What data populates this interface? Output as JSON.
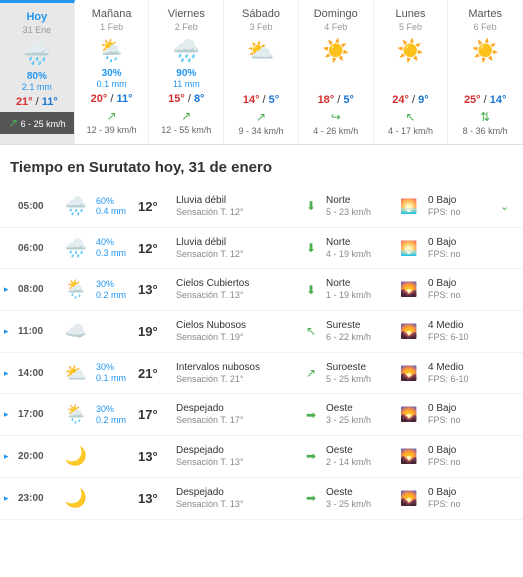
{
  "week": [
    {
      "label": "Hoy",
      "date": "31 Ene",
      "icon": "🌧️",
      "prob": "80%",
      "mm": "2.1 mm",
      "hi": "21°",
      "lo": "11°",
      "wind": "6 - 25 km/h",
      "winddir": "↗",
      "today": true
    },
    {
      "label": "Mañana",
      "date": "1 Feb",
      "icon": "🌦️",
      "prob": "30%",
      "mm": "0.1 mm",
      "hi": "20°",
      "lo": "11°",
      "wind": "12 - 39 km/h",
      "winddir": "↗"
    },
    {
      "label": "Viernes",
      "date": "2 Feb",
      "icon": "🌧️",
      "prob": "90%",
      "mm": "11 mm",
      "hi": "15°",
      "lo": "8°",
      "wind": "12 - 55 km/h",
      "winddir": "↗"
    },
    {
      "label": "Sábado",
      "date": "3 Feb",
      "icon": "⛅",
      "prob": "",
      "mm": "",
      "hi": "14°",
      "lo": "5°",
      "wind": "9 - 34 km/h",
      "winddir": "↗"
    },
    {
      "label": "Domingo",
      "date": "4 Feb",
      "icon": "☀️",
      "prob": "",
      "mm": "",
      "hi": "18°",
      "lo": "5°",
      "wind": "4 - 26 km/h",
      "winddir": "↪"
    },
    {
      "label": "Lunes",
      "date": "5 Feb",
      "icon": "☀️",
      "prob": "",
      "mm": "",
      "hi": "24°",
      "lo": "9°",
      "wind": "4 - 17 km/h",
      "winddir": "↖"
    },
    {
      "label": "Martes",
      "date": "6 Feb",
      "icon": "☀️",
      "prob": "",
      "mm": "",
      "hi": "25°",
      "lo": "14°",
      "wind": "8 - 36 km/h",
      "winddir": "⇅"
    }
  ],
  "hourly_title": "Tiempo en Surutato hoy, 31 de enero",
  "hours": [
    {
      "arrow": "",
      "time": "05:00",
      "icon": "🌧️",
      "prob": "60%",
      "mm": "0.4 mm",
      "temp": "12°",
      "cond": "Lluvia débil",
      "feel": "Sensación T. 12°",
      "wdir": "⬇",
      "wname": "Norte",
      "wspd": "5 - 23 km/h",
      "uvicon": "🌅",
      "uv": "0 Bajo",
      "fps": "FPS: no",
      "chev": "⌄"
    },
    {
      "arrow": "",
      "time": "06:00",
      "icon": "🌧️",
      "prob": "40%",
      "mm": "0.3 mm",
      "temp": "12°",
      "cond": "Lluvia débil",
      "feel": "Sensación T. 12°",
      "wdir": "⬇",
      "wname": "Norte",
      "wspd": "4 - 19 km/h",
      "uvicon": "🌅",
      "uv": "0 Bajo",
      "fps": "FPS: no",
      "chev": ""
    },
    {
      "arrow": "▸",
      "time": "08:00",
      "icon": "🌦️",
      "prob": "30%",
      "mm": "0.2 mm",
      "temp": "13°",
      "cond": "Cielos Cubiertos",
      "feel": "Sensación T. 13°",
      "wdir": "⬇",
      "wname": "Norte",
      "wspd": "1 - 19 km/h",
      "uvicon": "🌄",
      "uv": "0 Bajo",
      "fps": "FPS: no",
      "chev": ""
    },
    {
      "arrow": "▸",
      "time": "11:00",
      "icon": "☁️",
      "prob": "",
      "mm": "",
      "temp": "19°",
      "cond": "Cielos Nubosos",
      "feel": "Sensación T. 19°",
      "wdir": "↖",
      "wname": "Sureste",
      "wspd": "6 - 22 km/h",
      "uvicon": "🌄",
      "uv": "4 Medio",
      "fps": "FPS: 6-10",
      "chev": ""
    },
    {
      "arrow": "▸",
      "time": "14:00",
      "icon": "⛅",
      "prob": "30%",
      "mm": "0.1 mm",
      "temp": "21°",
      "cond": "Intervalos nubosos",
      "feel": "Sensación T. 21°",
      "wdir": "↗",
      "wname": "Suroeste",
      "wspd": "5 - 25 km/h",
      "uvicon": "🌄",
      "uv": "4 Medio",
      "fps": "FPS: 6-10",
      "chev": ""
    },
    {
      "arrow": "▸",
      "time": "17:00",
      "icon": "🌦️",
      "prob": "30%",
      "mm": "0.2 mm",
      "temp": "17°",
      "cond": "Despejado",
      "feel": "Sensación T. 17°",
      "wdir": "➡",
      "wname": "Oeste",
      "wspd": "3 - 25 km/h",
      "uvicon": "🌄",
      "uv": "0 Bajo",
      "fps": "FPS: no",
      "chev": ""
    },
    {
      "arrow": "▸",
      "time": "20:00",
      "icon": "🌙",
      "prob": "",
      "mm": "",
      "temp": "13°",
      "cond": "Despejado",
      "feel": "Sensación T. 13°",
      "wdir": "➡",
      "wname": "Oeste",
      "wspd": "2 - 14 km/h",
      "uvicon": "🌄",
      "uv": "0 Bajo",
      "fps": "FPS: no",
      "chev": ""
    },
    {
      "arrow": "▸",
      "time": "23:00",
      "icon": "🌙",
      "prob": "",
      "mm": "",
      "temp": "13°",
      "cond": "Despejado",
      "feel": "Sensación T. 13°",
      "wdir": "➡",
      "wname": "Oeste",
      "wspd": "3 - 25 km/h",
      "uvicon": "🌄",
      "uv": "0 Bajo",
      "fps": "FPS: no",
      "chev": ""
    }
  ]
}
